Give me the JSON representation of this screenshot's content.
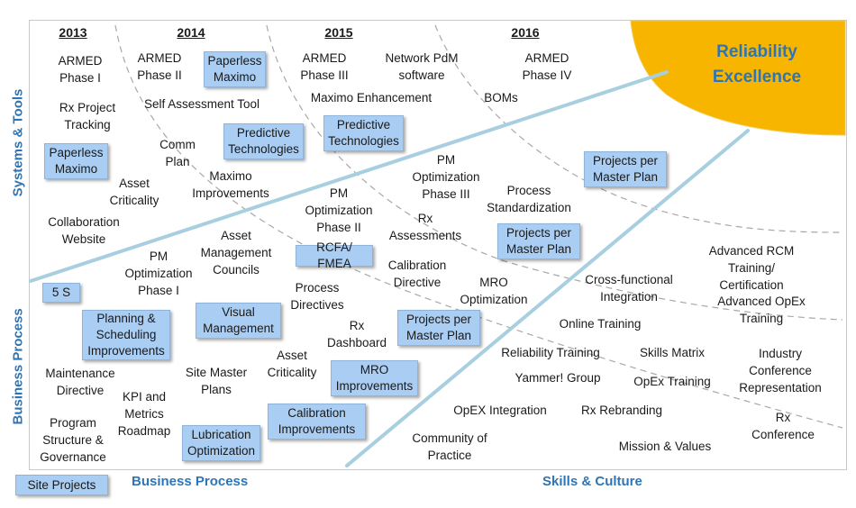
{
  "goal": "Reliability\nExcellence",
  "years": [
    "2013",
    "2014",
    "2015",
    "2016"
  ],
  "axes": {
    "left_top": "Systems & Tools",
    "left_bottom": "Business Process",
    "bottom_left": "Business Process",
    "bottom_right": "Skills & Culture"
  },
  "legend": "Site Projects",
  "colors": {
    "box_fill": "#a9cdf3",
    "accent": "#2e75b6",
    "goal_fill": "#f7b500"
  },
  "labels": {
    "armed1": "ARMED\nPhase I",
    "armed2": "ARMED\nPhase II",
    "armed3": "ARMED\nPhase III",
    "armed4": "ARMED\nPhase IV",
    "network_pdm": "Network PdM\nsoftware",
    "rx_tracking": "Rx Project\nTracking",
    "self_assess": "Self Assessment Tool",
    "maximo_enh": "Maximo Enhancement",
    "boms": "BOMs",
    "comm_plan": "Comm\nPlan",
    "asset_crit1": "Asset\nCriticality",
    "maximo_impr": "Maximo\nImprovements",
    "collab": "Collaboration\nWebsite",
    "pm_opt3": "PM\nOptimization\nPhase III",
    "process_std": "Process\nStandardization",
    "pm_opt2": "PM\nOptimization\nPhase II",
    "rx_assess": "Rx\nAssessments",
    "asset_mgmt": "Asset\nManagement\nCouncils",
    "pm_opt1": "PM\nOptimization\nPhase I",
    "calib_dir": "Calibration\nDirective",
    "mro_opt": "MRO\nOptimization",
    "adv_rcm": "Advanced RCM\nTraining/ Certification",
    "cross_func": "Cross-functional\nIntegration",
    "adv_opex": "Advanced OpEx\nTraining",
    "process_dir": "Process\nDirectives",
    "rx_dash": "Rx\nDashboard",
    "online_train": "Online Training",
    "rel_train": "Reliability Training",
    "skills_matrix": "Skills Matrix",
    "industry_conf": "Industry\nConference\nRepresentation",
    "maint_dir": "Maintenance\nDirective",
    "site_master": "Site Master\nPlans",
    "asset_crit2": "Asset\nCriticality",
    "yammer": "Yammer! Group",
    "opex_train": "OpEx Training",
    "kpi": "KPI and\nMetrics\nRoadmap",
    "prog_struct": "Program\nStructure &\nGovernance",
    "opex_int": "OpEX Integration",
    "rx_rebrand": "Rx Rebranding",
    "rx_conf": "Rx  Conference",
    "community": "Community of\nPractice",
    "mission": "Mission & Values"
  },
  "boxes": {
    "paperless1": "Paperless\nMaximo",
    "paperless2": "Paperless\nMaximo",
    "pred_tech1": "Predictive\nTechnologies",
    "pred_tech2": "Predictive\nTechnologies",
    "proj_master1": "Projects per\nMaster Plan",
    "proj_master2": "Projects per\nMaster Plan",
    "proj_master3": "Projects per\nMaster Plan",
    "rcfa": "RCFA/ FMEA",
    "five_s": "5 S",
    "planning": "Planning &\nScheduling\nImprovements",
    "visual": "Visual\nManagement",
    "mro_impr": "MRO\nImprovements",
    "calib_impr": "Calibration\nImprovements",
    "lubrication": "Lubrication\nOptimization"
  }
}
